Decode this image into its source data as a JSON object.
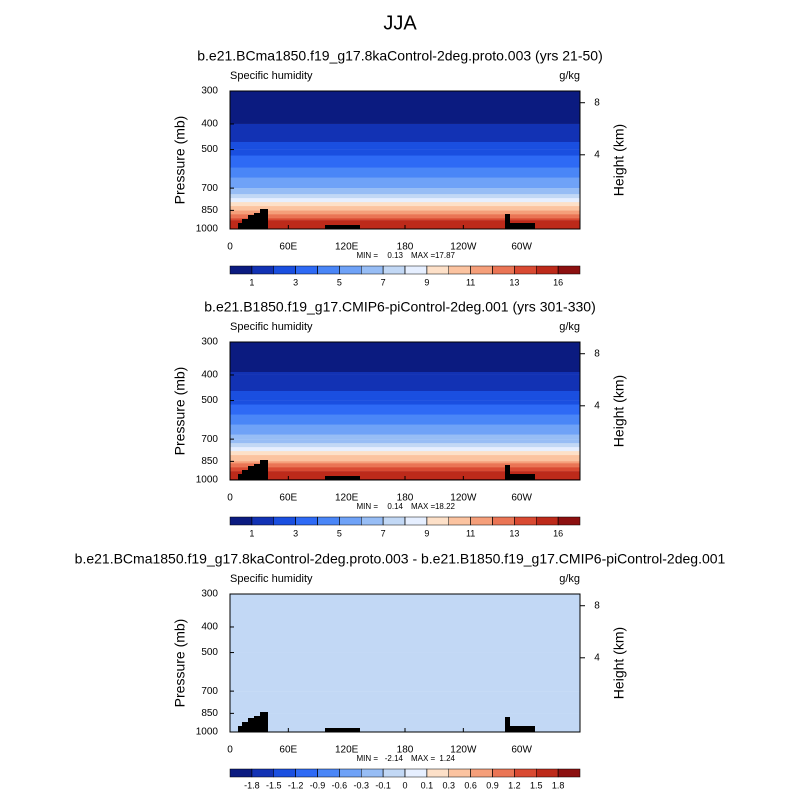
{
  "title": "JJA",
  "chart_data": [
    {
      "type": "contour",
      "title": "b.e21.BCma1850.f19_g17.8kaControl-2deg.proto.003 (yrs 21-50)",
      "left_label": "Specific humidity",
      "right_label": "g/kg",
      "ylabel": "Pressure (mb)",
      "y2label": "Height (km)",
      "xlim": [
        0,
        360
      ],
      "xticks": [
        0,
        {
          "value": 60,
          "label": "60E"
        },
        {
          "value": 120,
          "label": "120E"
        },
        180,
        {
          "value": 240,
          "label": "120W"
        },
        {
          "value": 300,
          "label": "60W"
        }
      ],
      "ylim": [
        1000,
        300
      ],
      "log_y": true,
      "yticks": [
        300,
        400,
        500,
        700,
        850,
        1000
      ],
      "y2lim": [
        -1.7,
        8.9
      ],
      "y2ticks": [
        4,
        8
      ],
      "levels": [
        1,
        2,
        3,
        4,
        5,
        6,
        7,
        8,
        9,
        10,
        11,
        12,
        13,
        14,
        16
      ],
      "label_stride": 2,
      "colors": [
        "#0b1b80",
        "#1232b4",
        "#1a4fe0",
        "#2e6af5",
        "#4a86f7",
        "#6fa2f7",
        "#97bdf5",
        "#c2d8f5",
        "#e6efff",
        "#fde0c8",
        "#fbc3a0",
        "#f59f7a",
        "#ea7555",
        "#d94a32",
        "#bd2a1a",
        "#8c1010"
      ],
      "profile_p": [
        1000,
        925,
        850,
        700,
        500,
        400,
        300
      ],
      "profile": [
        16,
        14,
        11,
        6,
        2.5,
        1,
        0.3
      ],
      "min_label": "MIN =",
      "min": 0.13,
      "max_label": "MAX =",
      "max": 17.87
    },
    {
      "type": "contour",
      "title": "b.e21.B1850.f19_g17.CMIP6-piControl-2deg.001 (yrs 301-330)",
      "left_label": "Specific humidity",
      "right_label": "g/kg",
      "ylabel": "Pressure (mb)",
      "y2label": "Height (km)",
      "xlim": [
        0,
        360
      ],
      "xticks": [
        0,
        {
          "value": 60,
          "label": "60E"
        },
        {
          "value": 120,
          "label": "120E"
        },
        180,
        {
          "value": 240,
          "label": "120W"
        },
        {
          "value": 300,
          "label": "60W"
        }
      ],
      "ylim": [
        1000,
        300
      ],
      "log_y": true,
      "yticks": [
        300,
        400,
        500,
        700,
        850,
        1000
      ],
      "y2lim": [
        -1.7,
        8.9
      ],
      "y2ticks": [
        4,
        8
      ],
      "levels": [
        1,
        2,
        3,
        4,
        5,
        6,
        7,
        8,
        9,
        10,
        11,
        12,
        13,
        14,
        16
      ],
      "label_stride": 2,
      "colors": [
        "#0b1b80",
        "#1232b4",
        "#1a4fe0",
        "#2e6af5",
        "#4a86f7",
        "#6fa2f7",
        "#97bdf5",
        "#c2d8f5",
        "#e6efff",
        "#fde0c8",
        "#fbc3a0",
        "#f59f7a",
        "#ea7555",
        "#d94a32",
        "#bd2a1a",
        "#8c1010"
      ],
      "profile_p": [
        1000,
        925,
        850,
        700,
        500,
        400,
        300
      ],
      "profile": [
        16.5,
        14.5,
        11.5,
        6.5,
        2.7,
        1.1,
        0.3
      ],
      "min_label": "MIN =",
      "min": 0.14,
      "max_label": "MAX =",
      "max": 18.22
    },
    {
      "type": "contour",
      "title": "b.e21.BCma1850.f19_g17.8kaControl-2deg.proto.003 - b.e21.B1850.f19_g17.CMIP6-piControl-2deg.001",
      "left_label": "Specific humidity",
      "right_label": "g/kg",
      "ylabel": "Pressure (mb)",
      "y2label": "Height (km)",
      "xlim": [
        0,
        360
      ],
      "xticks": [
        0,
        {
          "value": 60,
          "label": "60E"
        },
        {
          "value": 120,
          "label": "120E"
        },
        180,
        {
          "value": 240,
          "label": "120W"
        },
        {
          "value": 300,
          "label": "60W"
        }
      ],
      "ylim": [
        1000,
        300
      ],
      "log_y": true,
      "yticks": [
        300,
        400,
        500,
        700,
        850,
        1000
      ],
      "y2lim": [
        -1.7,
        8.9
      ],
      "y2ticks": [
        4,
        8
      ],
      "levels": [
        -1.8,
        -1.5,
        -1.2,
        -0.9,
        -0.6,
        -0.3,
        -0.1,
        0,
        0.1,
        0.3,
        0.6,
        0.9,
        1.2,
        1.5,
        1.8
      ],
      "label_stride": 1,
      "colors": [
        "#0b1b80",
        "#1232b4",
        "#1a4fe0",
        "#2e6af5",
        "#4a86f7",
        "#6fa2f7",
        "#97bdf5",
        "#c2d8f5",
        "#e6efff",
        "#fde0c8",
        "#fbc3a0",
        "#f59f7a",
        "#ea7555",
        "#d94a32",
        "#bd2a1a",
        "#8c1010"
      ],
      "profile_p": [
        1000,
        850,
        700,
        500,
        300
      ],
      "profile": [
        -0.05,
        -0.05,
        -0.05,
        -0.05,
        -0.05
      ],
      "min_label": "MIN =",
      "min": -2.14,
      "max_label": "MAX =",
      "max": 1.24
    }
  ]
}
